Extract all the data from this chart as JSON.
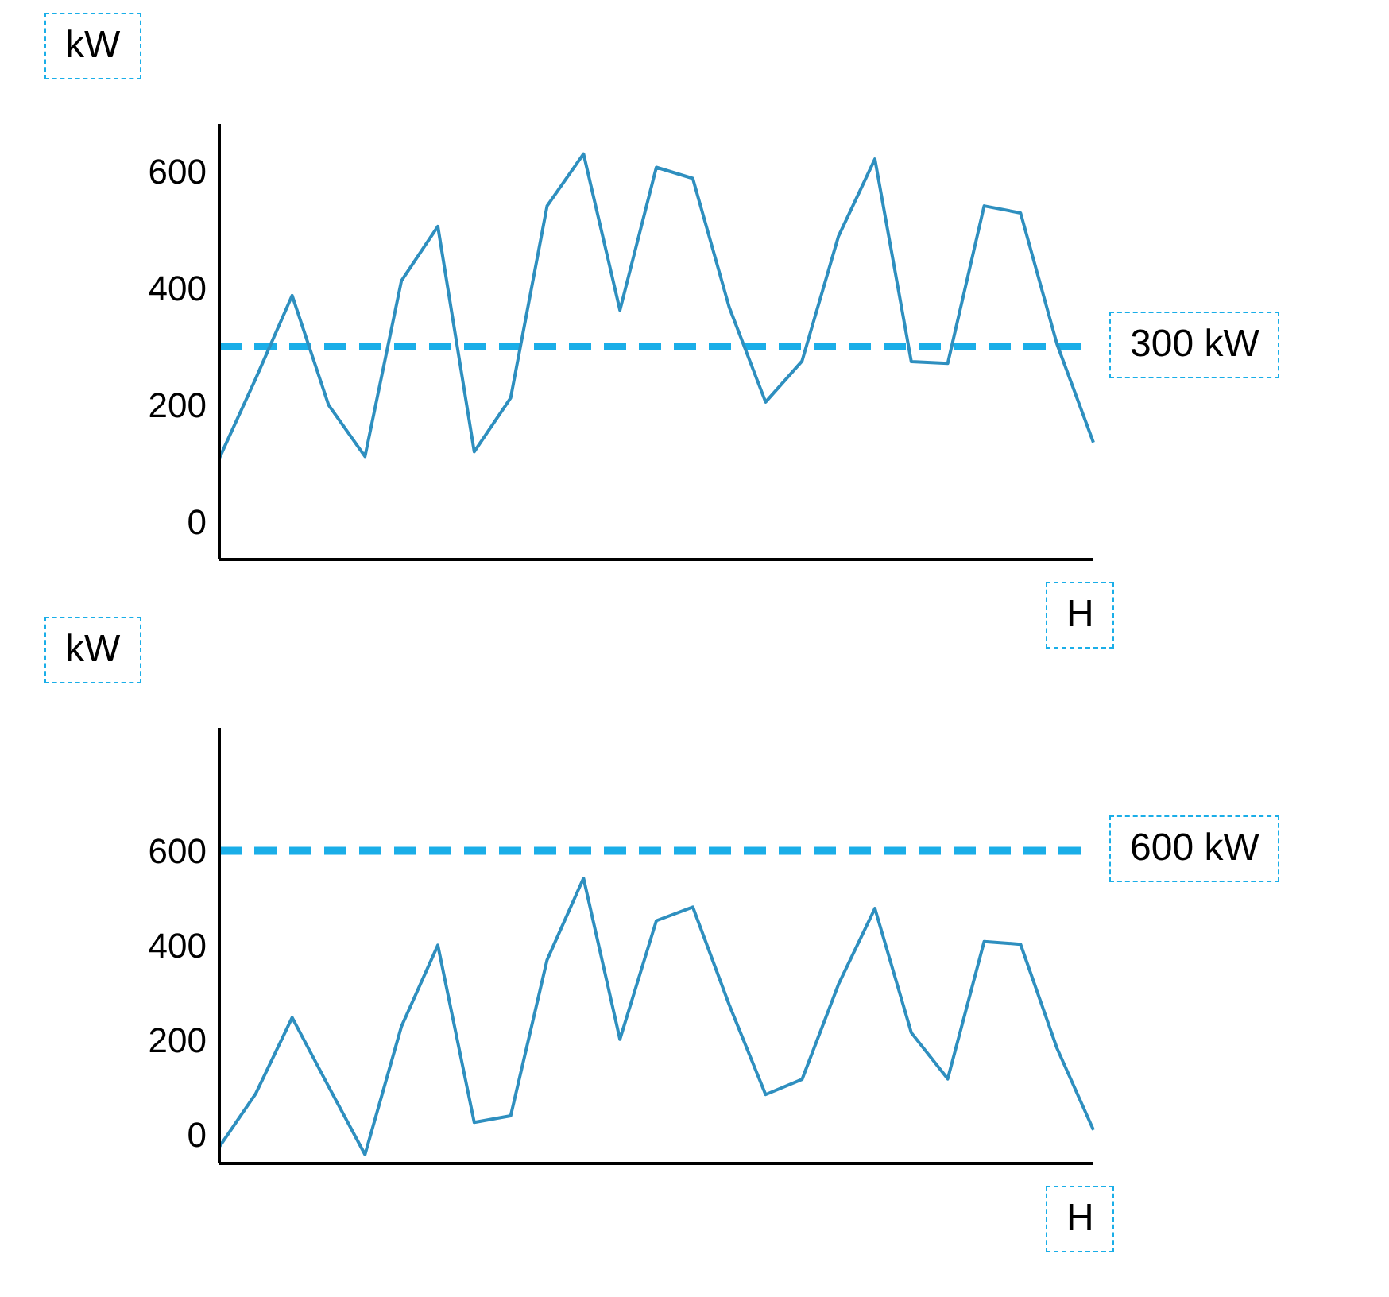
{
  "chart_data": [
    {
      "type": "line",
      "ylabel": "kW",
      "xlabel": "H",
      "ylim": [
        -64,
        680
      ],
      "yticks": [
        0,
        200,
        400,
        600
      ],
      "tick_labels": "y",
      "marker": "none",
      "line_style": "solid",
      "categories": [
        null,
        null,
        null,
        null,
        null,
        null,
        null,
        null,
        null,
        null,
        null,
        null,
        null,
        null,
        null,
        null,
        null,
        null,
        null,
        null,
        null,
        null,
        null,
        null,
        null
      ],
      "series": [
        {
          "color": "#2e8fbf",
          "values": [
            109,
            245,
            387,
            200,
            112,
            412,
            505,
            120,
            212,
            540,
            629,
            362,
            606,
            587,
            367,
            205,
            275,
            488,
            620,
            274,
            271,
            540,
            528,
            304,
            136
          ]
        }
      ],
      "ref_lines": [
        {
          "axis": "y",
          "value": 300,
          "label": "300 kW",
          "color": "#1aaee8",
          "line_style": "dashed"
        }
      ]
    },
    {
      "type": "line",
      "ylabel": "kW",
      "xlabel": "H",
      "ylim": [
        -62,
        860
      ],
      "yticks": [
        0,
        200,
        400,
        600
      ],
      "tick_labels": "y",
      "marker": "none",
      "line_style": "solid",
      "categories": [
        null,
        null,
        null,
        null,
        null,
        null,
        null,
        null,
        null,
        null,
        null,
        null,
        null,
        null,
        null,
        null,
        null,
        null,
        null,
        null,
        null,
        null,
        null,
        null,
        null
      ],
      "series": [
        {
          "color": "#2e8fbf",
          "values": [
            -27,
            86,
            247,
            101,
            -43,
            228,
            400,
            25,
            39,
            369,
            542,
            201,
            452,
            481,
            274,
            84,
            116,
            317,
            478,
            215,
            117,
            408,
            402,
            182,
            9
          ]
        }
      ],
      "ref_lines": [
        {
          "axis": "y",
          "value": 600,
          "label": "600 kW",
          "color": "#1aaee8",
          "line_style": "dashed"
        }
      ]
    }
  ]
}
